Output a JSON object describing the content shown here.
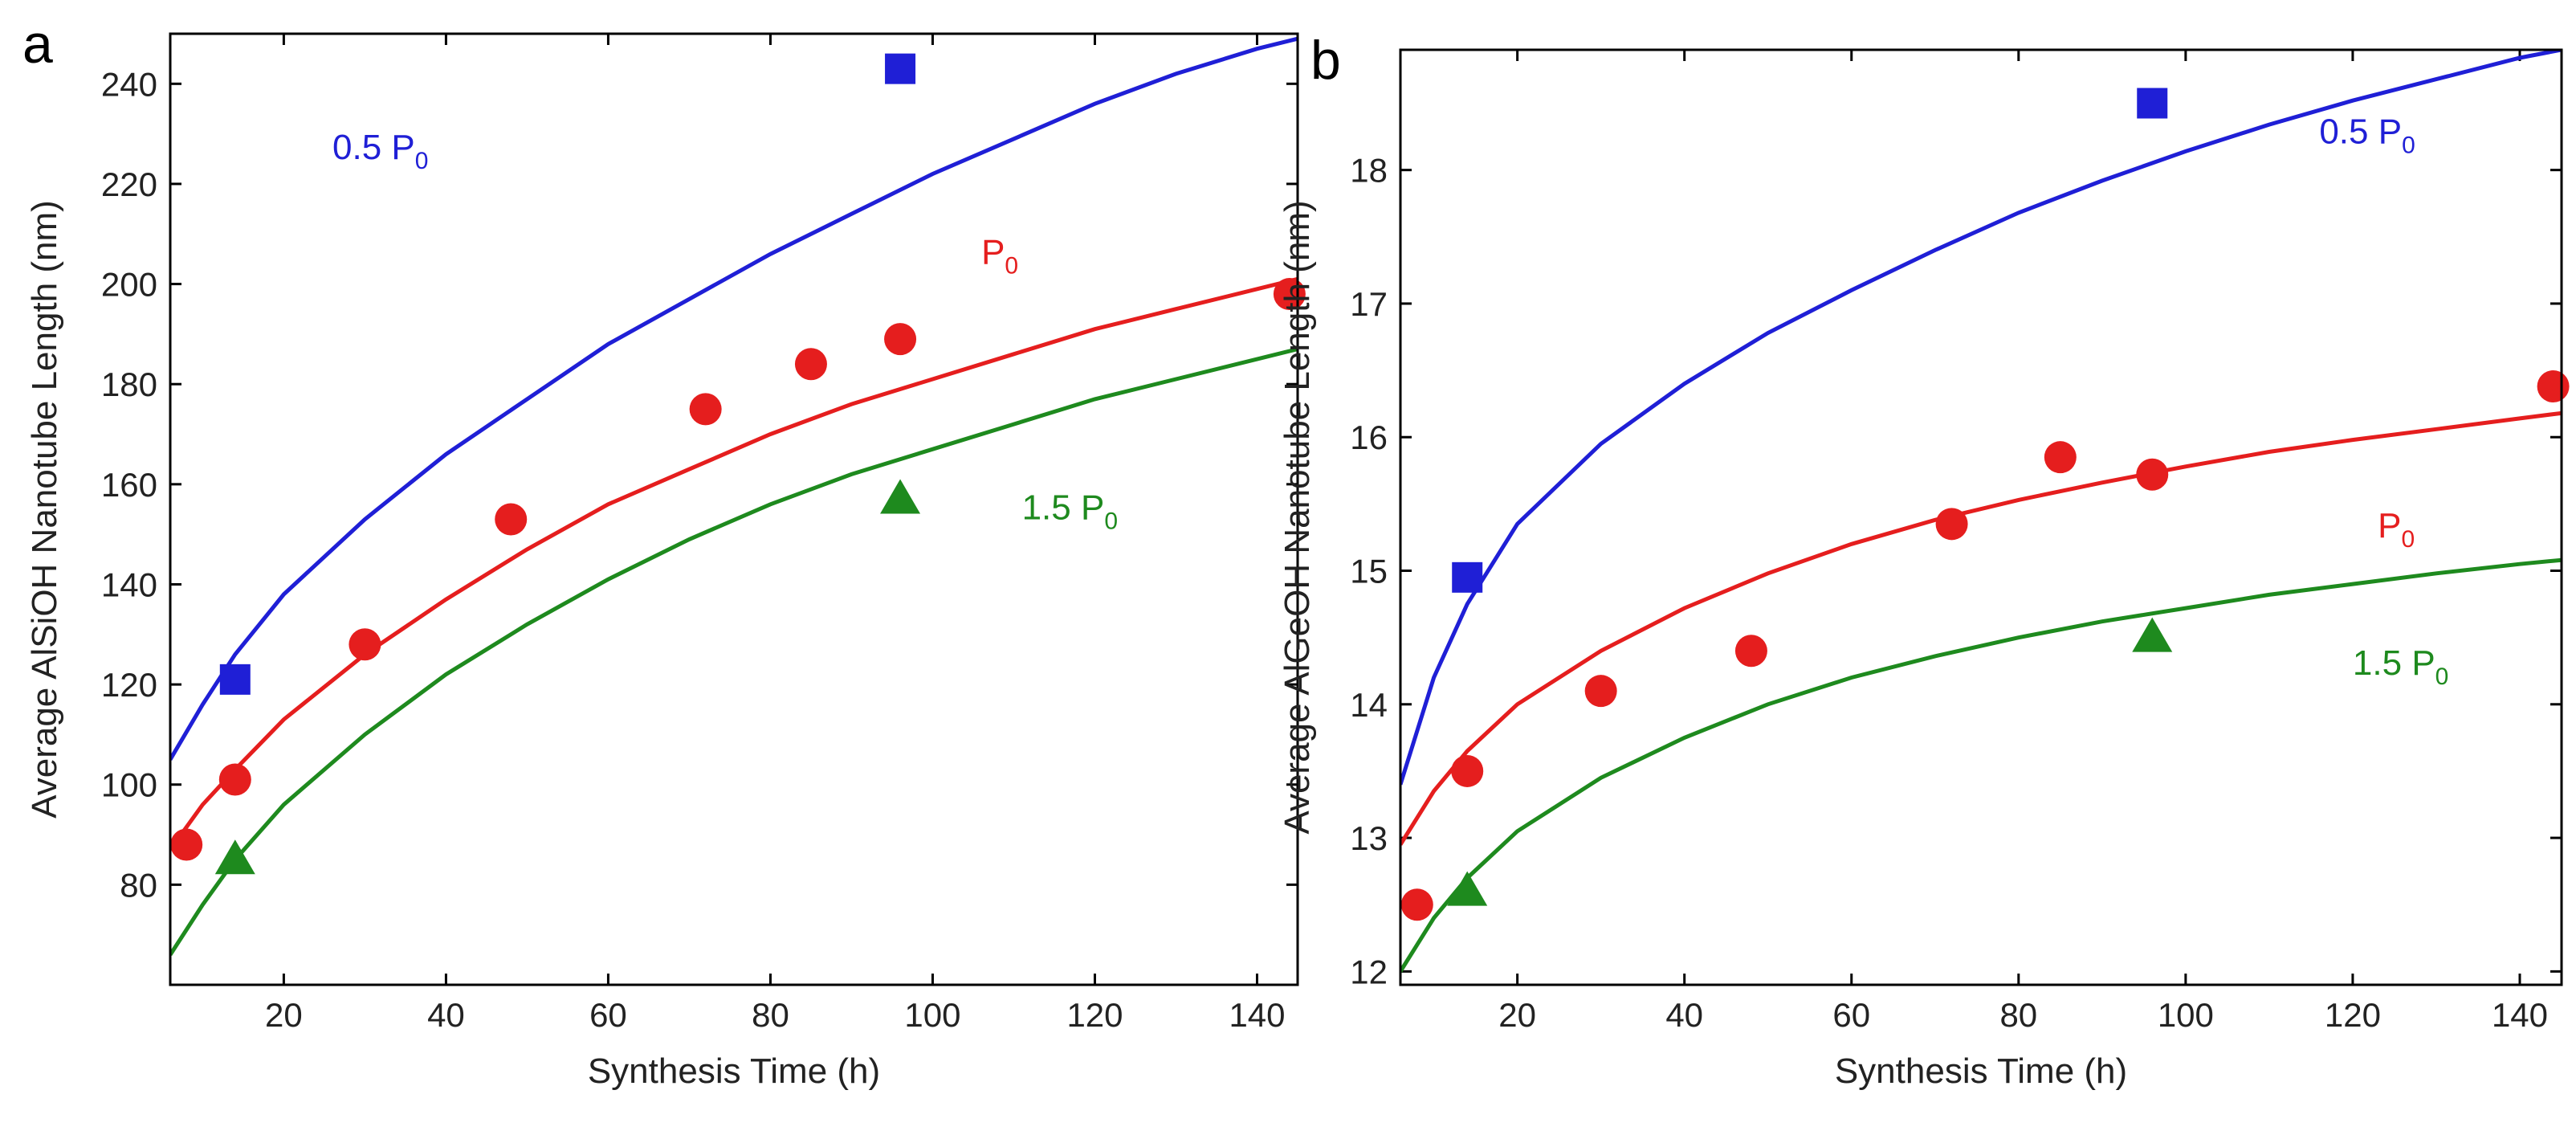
{
  "chart_data": [
    {
      "panel": "a",
      "type": "scatter",
      "xlabel": "Synthesis Time (h)",
      "ylabel": "Average AlSiOH Nanotube Length (nm)",
      "xlim": [
        6,
        145
      ],
      "ylim": [
        60,
        250
      ],
      "xticks": [
        20,
        40,
        60,
        80,
        100,
        120,
        140
      ],
      "yticks": [
        80,
        100,
        120,
        140,
        160,
        180,
        200,
        220,
        240
      ],
      "series": [
        {
          "name": "0.5 P0",
          "label_main": "0.5 P",
          "label_sub": "0",
          "color": "#1f1fd6",
          "marker": "square",
          "points": [
            [
              14,
              121
            ],
            [
              96,
              243
            ]
          ],
          "fit": [
            [
              6,
              105
            ],
            [
              10,
              116
            ],
            [
              14,
              126
            ],
            [
              20,
              138
            ],
            [
              30,
              153
            ],
            [
              40,
              166
            ],
            [
              50,
              177
            ],
            [
              60,
              188
            ],
            [
              70,
              197
            ],
            [
              80,
              206
            ],
            [
              90,
              214
            ],
            [
              100,
              222
            ],
            [
              110,
              229
            ],
            [
              120,
              236
            ],
            [
              130,
              242
            ],
            [
              140,
              247
            ],
            [
              145,
              249
            ]
          ],
          "label_pos": [
            26,
            225
          ]
        },
        {
          "name": "P0",
          "label_main": "P",
          "label_sub": "0",
          "color": "#e51e1e",
          "marker": "circle",
          "points": [
            [
              8,
              88
            ],
            [
              14,
              101
            ],
            [
              30,
              128
            ],
            [
              48,
              153
            ],
            [
              72,
              175
            ],
            [
              85,
              184
            ],
            [
              96,
              189
            ],
            [
              144,
              198
            ]
          ],
          "fit": [
            [
              6,
              87
            ],
            [
              10,
              96
            ],
            [
              14,
              103
            ],
            [
              20,
              113
            ],
            [
              30,
              126
            ],
            [
              40,
              137
            ],
            [
              50,
              147
            ],
            [
              60,
              156
            ],
            [
              70,
              163
            ],
            [
              80,
              170
            ],
            [
              90,
              176
            ],
            [
              100,
              181
            ],
            [
              110,
              186
            ],
            [
              120,
              191
            ],
            [
              130,
              195
            ],
            [
              140,
              199
            ],
            [
              145,
              201
            ]
          ],
          "label_pos": [
            106,
            204
          ]
        },
        {
          "name": "1.5 P0",
          "label_main": "1.5 P",
          "label_sub": "0",
          "color": "#1e8a1e",
          "marker": "triangle",
          "points": [
            [
              14,
              85
            ],
            [
              96,
              157
            ]
          ],
          "fit": [
            [
              6,
              66
            ],
            [
              10,
              76
            ],
            [
              14,
              85
            ],
            [
              20,
              96
            ],
            [
              30,
              110
            ],
            [
              40,
              122
            ],
            [
              50,
              132
            ],
            [
              60,
              141
            ],
            [
              70,
              149
            ],
            [
              80,
              156
            ],
            [
              90,
              162
            ],
            [
              100,
              167
            ],
            [
              110,
              172
            ],
            [
              120,
              177
            ],
            [
              130,
              181
            ],
            [
              140,
              185
            ],
            [
              145,
              187
            ]
          ],
          "label_pos": [
            111,
            153
          ]
        }
      ]
    },
    {
      "panel": "b",
      "type": "scatter",
      "xlabel": "Synthesis Time (h)",
      "ylabel": "Average AlGeOH Nanotube Length (nm)",
      "xlim": [
        6,
        145
      ],
      "ylim": [
        11.9,
        18.9
      ],
      "xticks": [
        20,
        40,
        60,
        80,
        100,
        120,
        140
      ],
      "yticks": [
        12,
        13,
        14,
        15,
        16,
        17,
        18
      ],
      "series": [
        {
          "name": "0.5 P0",
          "label_main": "0.5 P",
          "label_sub": "0",
          "color": "#1f1fd6",
          "marker": "square",
          "points": [
            [
              14,
              14.95
            ],
            [
              96,
              18.5
            ]
          ],
          "fit": [
            [
              6,
              13.4
            ],
            [
              10,
              14.2
            ],
            [
              14,
              14.75
            ],
            [
              20,
              15.35
            ],
            [
              30,
              15.95
            ],
            [
              40,
              16.4
            ],
            [
              50,
              16.78
            ],
            [
              60,
              17.1
            ],
            [
              70,
              17.4
            ],
            [
              80,
              17.68
            ],
            [
              90,
              17.92
            ],
            [
              100,
              18.14
            ],
            [
              110,
              18.34
            ],
            [
              120,
              18.52
            ],
            [
              130,
              18.68
            ],
            [
              140,
              18.84
            ],
            [
              145,
              18.9
            ]
          ],
          "label_pos": [
            116,
            18.2
          ]
        },
        {
          "name": "P0",
          "label_main": "P",
          "label_sub": "0",
          "color": "#e51e1e",
          "marker": "circle",
          "points": [
            [
              8,
              12.5
            ],
            [
              14,
              13.5
            ],
            [
              30,
              14.1
            ],
            [
              48,
              14.4
            ],
            [
              72,
              15.35
            ],
            [
              85,
              15.85
            ],
            [
              96,
              15.72
            ],
            [
              144,
              16.38
            ]
          ],
          "fit": [
            [
              6,
              12.95
            ],
            [
              10,
              13.35
            ],
            [
              14,
              13.65
            ],
            [
              20,
              14.0
            ],
            [
              30,
              14.4
            ],
            [
              40,
              14.72
            ],
            [
              50,
              14.98
            ],
            [
              60,
              15.2
            ],
            [
              70,
              15.38
            ],
            [
              80,
              15.53
            ],
            [
              90,
              15.66
            ],
            [
              100,
              15.78
            ],
            [
              110,
              15.89
            ],
            [
              120,
              15.98
            ],
            [
              130,
              16.06
            ],
            [
              140,
              16.14
            ],
            [
              145,
              16.18
            ]
          ],
          "label_pos": [
            123,
            15.25
          ]
        },
        {
          "name": "1.5 P0",
          "label_main": "1.5 P",
          "label_sub": "0",
          "color": "#1e8a1e",
          "marker": "triangle",
          "points": [
            [
              14,
              12.6
            ],
            [
              96,
              14.5
            ]
          ],
          "fit": [
            [
              6,
              12.0
            ],
            [
              10,
              12.4
            ],
            [
              14,
              12.7
            ],
            [
              20,
              13.05
            ],
            [
              30,
              13.45
            ],
            [
              40,
              13.75
            ],
            [
              50,
              14.0
            ],
            [
              60,
              14.2
            ],
            [
              70,
              14.36
            ],
            [
              80,
              14.5
            ],
            [
              90,
              14.62
            ],
            [
              100,
              14.72
            ],
            [
              110,
              14.82
            ],
            [
              120,
              14.9
            ],
            [
              130,
              14.98
            ],
            [
              140,
              15.05
            ],
            [
              145,
              15.08
            ]
          ],
          "label_pos": [
            120,
            14.22
          ]
        }
      ]
    }
  ]
}
